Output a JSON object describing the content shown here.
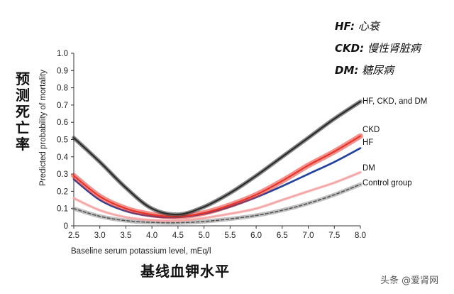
{
  "chart_data": {
    "type": "line",
    "xlabel": "Baseline serum potassium level, mEq/l",
    "ylabel": "Predicted probability of mortality",
    "xlim": [
      2.5,
      8.0
    ],
    "ylim": [
      0,
      1.0
    ],
    "x_ticks": [
      "2.5",
      "3.0",
      "3.5",
      "4.0",
      "4.5",
      "5.0",
      "5.5",
      "6.0",
      "6.5",
      "7.0",
      "7.5",
      "8.0"
    ],
    "y_ticks": [
      "0",
      "0.1",
      "0.2",
      "0.3",
      "0.4",
      "0.5",
      "0.6",
      "0.7",
      "0.8",
      "0.9",
      "1.0"
    ],
    "grid": false,
    "legend_placement": "right-end labels",
    "x": [
      2.5,
      3.0,
      3.5,
      4.0,
      4.5,
      5.0,
      5.5,
      6.0,
      6.5,
      7.0,
      7.5,
      8.0
    ],
    "series": [
      {
        "name": "HF, CKD, and DM",
        "color": "#2b2b2b",
        "band": 0.012,
        "values": [
          0.51,
          0.37,
          0.22,
          0.1,
          0.066,
          0.11,
          0.19,
          0.29,
          0.4,
          0.51,
          0.62,
          0.72
        ]
      },
      {
        "name": "CKD",
        "color": "#e8352c",
        "band": 0.016,
        "values": [
          0.29,
          0.17,
          0.1,
          0.065,
          0.054,
          0.075,
          0.12,
          0.18,
          0.26,
          0.35,
          0.43,
          0.52
        ]
      },
      {
        "name": "HF",
        "color": "#1f3f99",
        "band": 0.006,
        "values": [
          0.27,
          0.15,
          0.085,
          0.055,
          0.05,
          0.07,
          0.11,
          0.165,
          0.23,
          0.3,
          0.37,
          0.45
        ]
      },
      {
        "name": "DM",
        "color": "#f4a6a6",
        "band": 0.008,
        "values": [
          0.16,
          0.09,
          0.05,
          0.033,
          0.03,
          0.045,
          0.07,
          0.1,
          0.15,
          0.2,
          0.25,
          0.31
        ]
      },
      {
        "name": "Control group",
        "color": "#8c8c8c",
        "band": 0.012,
        "dashed": true,
        "values": [
          0.1,
          0.055,
          0.03,
          0.02,
          0.018,
          0.025,
          0.04,
          0.06,
          0.09,
          0.13,
          0.18,
          0.24
        ]
      }
    ]
  },
  "annotations": {
    "y_title_cn": [
      "预",
      "测",
      "死",
      "亡",
      "率"
    ],
    "x_title_cn": "基线血钾水平",
    "notes": [
      {
        "abbr": "HF:",
        "def": "心衰"
      },
      {
        "abbr": "CKD:",
        "def": "慢性肾脏病"
      },
      {
        "abbr": "DM:",
        "def": "糖尿病"
      }
    ],
    "watermark": "头条 @爱肾网"
  }
}
